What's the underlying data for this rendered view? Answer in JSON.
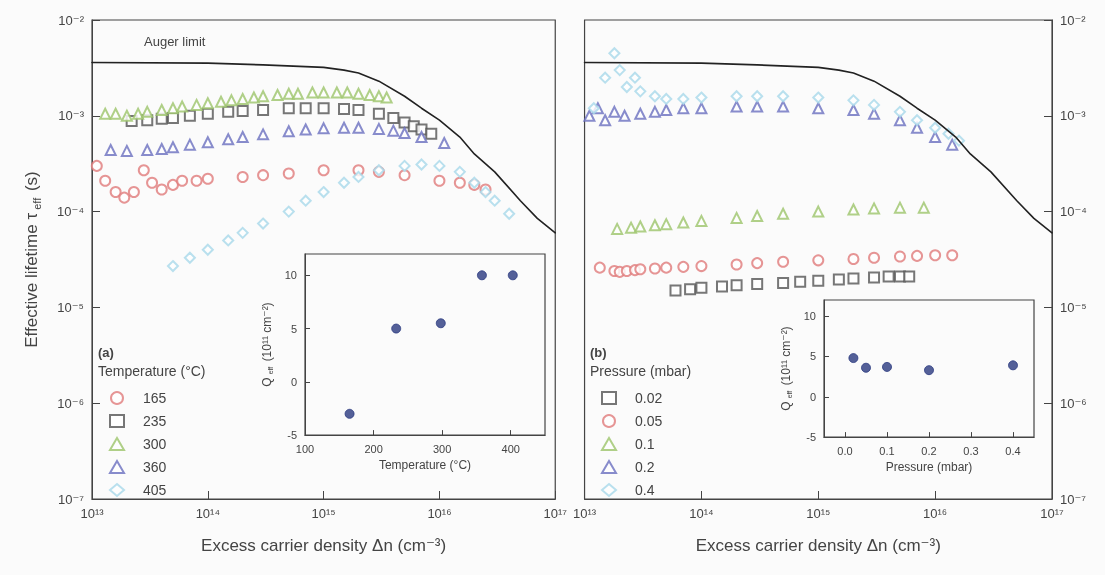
{
  "chart_data": [
    {
      "type": "scatter",
      "xlabel": "Excess carrier density Δn (cm⁻³)",
      "ylabel": "Effective lifetime τ$_{eff}$ (s)",
      "legend_title": "Temperature (°C)",
      "annotations": [
        "(a)"
      ],
      "log": "xy",
      "grid": false,
      "legend": "bottom left",
      "xlim": [
        10000000000000.0,
        1e+17
      ],
      "xticks": [
        {
          "value": 10000000000000.0,
          "label": "10¹³"
        },
        {
          "value": 100000000000000.0,
          "label": "10¹⁴"
        },
        {
          "value": 1000000000000000.0,
          "label": "10¹⁵"
        },
        {
          "value": 1e+16,
          "label": "10¹⁶"
        },
        {
          "value": 1e+17,
          "label": "10¹⁷"
        }
      ],
      "ylim": [
        1e-07,
        0.01
      ],
      "yticks": [
        {
          "value": 1e-07,
          "label": "10⁻⁷"
        },
        {
          "value": 1e-06,
          "label": "10⁻⁶"
        },
        {
          "value": 1e-05,
          "label": "10⁻⁵"
        },
        {
          "value": 0.0001,
          "label": "10⁻⁴"
        },
        {
          "value": 0.001,
          "label": "10⁻³"
        },
        {
          "value": 0.01,
          "label": "10⁻²"
        }
      ],
      "series": [
        {
          "type": "line",
          "name": "Auger limit",
          "color": "#222222",
          "marker": "none",
          "line_style": "solid",
          "x": [
            10000000000000.0,
            100000000000000.0,
            300000000000000.0,
            1000000000000000.0,
            1500000000000000.0,
            2000000000000000.0,
            3000000000000000.0,
            5000000000000000.0,
            7000000000000000.0,
            1e+16,
            1.5e+16,
            2e+16,
            3e+16,
            5e+16,
            7e+16,
            1e+17
          ],
          "values": [
            0.0036,
            0.00355,
            0.0034,
            0.0032,
            0.003,
            0.0028,
            0.0023,
            0.0016,
            0.0012,
            0.0009,
            0.0006,
            0.0004,
            0.00026,
            0.00013,
            8.5e-05,
            6e-05
          ]
        },
        {
          "name": "165",
          "color": "#e07a7a",
          "marker": "circle",
          "x": [
            11000000000000.0,
            13000000000000.0,
            16000000000000.0,
            19000000000000.0,
            23000000000000.0,
            28000000000000.0,
            33000000000000.0,
            40000000000000.0,
            50000000000000.0,
            60000000000000.0,
            80000000000000.0,
            100000000000000.0,
            200000000000000.0,
            300000000000000.0,
            500000000000000.0,
            1000000000000000.0,
            2000000000000000.0,
            3000000000000000.0,
            5000000000000000.0,
            1e+16,
            1.5e+16,
            2e+16,
            2.5e+16
          ],
          "values": [
            0.0003,
            0.00021,
            0.00016,
            0.00014,
            0.00016,
            0.00027,
            0.0002,
            0.00017,
            0.00019,
            0.00021,
            0.00021,
            0.00022,
            0.00023,
            0.00024,
            0.00025,
            0.00027,
            0.00027,
            0.00026,
            0.00024,
            0.00021,
            0.0002,
            0.00019,
            0.00017
          ]
        },
        {
          "name": "235",
          "color": "#555555",
          "marker": "square",
          "x": [
            22000000000000.0,
            30000000000000.0,
            40000000000000.0,
            50000000000000.0,
            70000000000000.0,
            100000000000000.0,
            150000000000000.0,
            200000000000000.0,
            300000000000000.0,
            500000000000000.0,
            700000000000000.0,
            1000000000000000.0,
            1500000000000000.0,
            2000000000000000.0,
            3000000000000000.0,
            4000000000000000.0,
            5000000000000000.0,
            6000000000000000.0,
            7000000000000000.0,
            8500000000000000.0
          ],
          "values": [
            0.00088,
            0.0009,
            0.00093,
            0.00095,
            0.001,
            0.00105,
            0.0011,
            0.00112,
            0.00115,
            0.0012,
            0.0012,
            0.0012,
            0.00118,
            0.00115,
            0.00105,
            0.00095,
            0.00085,
            0.00078,
            0.00072,
            0.00065
          ]
        },
        {
          "name": "300",
          "color": "#9cc46a",
          "marker": "triangle",
          "x": [
            13000000000000.0,
            16000000000000.0,
            20000000000000.0,
            25000000000000.0,
            30000000000000.0,
            40000000000000.0,
            50000000000000.0,
            60000000000000.0,
            80000000000000.0,
            100000000000000.0,
            130000000000000.0,
            160000000000000.0,
            200000000000000.0,
            250000000000000.0,
            300000000000000.0,
            400000000000000.0,
            500000000000000.0,
            600000000000000.0,
            800000000000000.0,
            1000000000000000.0,
            1300000000000000.0,
            1600000000000000.0,
            2000000000000000.0,
            2500000000000000.0,
            3000000000000000.0,
            3500000000000000.0
          ],
          "values": [
            0.00105,
            0.00105,
            0.001,
            0.00105,
            0.0011,
            0.00115,
            0.0012,
            0.00125,
            0.0013,
            0.00135,
            0.0014,
            0.00145,
            0.0015,
            0.00155,
            0.0016,
            0.00165,
            0.0017,
            0.0017,
            0.00175,
            0.00175,
            0.00175,
            0.00175,
            0.0017,
            0.00165,
            0.0016,
            0.00155
          ]
        },
        {
          "name": "360",
          "color": "#6a6fbf",
          "marker": "triangle",
          "x": [
            14500000000000.0,
            20000000000000.0,
            30000000000000.0,
            40000000000000.0,
            50000000000000.0,
            70000000000000.0,
            100000000000000.0,
            150000000000000.0,
            200000000000000.0,
            300000000000000.0,
            500000000000000.0,
            700000000000000.0,
            1000000000000000.0,
            1500000000000000.0,
            2000000000000000.0,
            3000000000000000.0,
            4000000000000000.0,
            5000000000000000.0,
            7000000000000000.0,
            1.1e+16
          ],
          "values": [
            0.00044,
            0.00043,
            0.00044,
            0.00045,
            0.00047,
            0.0005,
            0.00053,
            0.00057,
            0.0006,
            0.00064,
            0.00069,
            0.00072,
            0.00074,
            0.00075,
            0.00075,
            0.00073,
            0.0007,
            0.00066,
            0.0006,
            0.00052
          ]
        },
        {
          "name": "405",
          "color": "#a8d8ea",
          "marker": "diamond",
          "x": [
            50000000000000.0,
            70000000000000.0,
            100000000000000.0,
            150000000000000.0,
            200000000000000.0,
            300000000000000.0,
            500000000000000.0,
            700000000000000.0,
            1000000000000000.0,
            1500000000000000.0,
            2000000000000000.0,
            3000000000000000.0,
            5000000000000000.0,
            7000000000000000.0,
            1e+16,
            1.5e+16,
            2e+16,
            2.5e+16,
            3e+16,
            4e+16
          ],
          "values": [
            2.7e-05,
            3.3e-05,
            4e-05,
            5e-05,
            6e-05,
            7.5e-05,
            0.0001,
            0.00013,
            0.00016,
            0.0002,
            0.00023,
            0.00027,
            0.0003,
            0.00031,
            0.0003,
            0.00026,
            0.0002,
            0.00016,
            0.00013,
            9.5e-05
          ]
        }
      ]
    },
    {
      "type": "scatter",
      "xlabel": "Temperature (°C)",
      "ylabel": "Q$_{eff}$ (10¹¹ cm⁻²)",
      "grid": false,
      "marker": "circle",
      "xlim": [
        100,
        450
      ],
      "xticks": [
        100,
        200,
        300,
        400
      ],
      "ylim": [
        -5,
        12
      ],
      "yticks": [
        -5,
        0,
        5,
        10
      ],
      "series": [
        {
          "color": "#2a3a80",
          "x": [
            165,
            233,
            298,
            358,
            403
          ],
          "values": [
            -3,
            5,
            5.5,
            10,
            10
          ]
        }
      ]
    },
    {
      "type": "scatter",
      "xlabel": "Excess carrier density Δn (cm⁻³)",
      "legend_title": "Pressure (mbar)",
      "annotations": [
        "(b)"
      ],
      "log": "xy",
      "grid": false,
      "legend": "bottom left",
      "xlim": [
        10000000000000.0,
        1e+17
      ],
      "xticks": [
        {
          "value": 10000000000000.0,
          "label": "10¹³"
        },
        {
          "value": 100000000000000.0,
          "label": "10¹⁴"
        },
        {
          "value": 1000000000000000.0,
          "label": "10¹⁵"
        },
        {
          "value": 1e+16,
          "label": "10¹⁶"
        },
        {
          "value": 1e+17,
          "label": "10¹⁷"
        }
      ],
      "ylim": [
        1e-07,
        0.01
      ],
      "yticks": [
        {
          "value": 1e-07,
          "label": "10⁻⁷"
        },
        {
          "value": 1e-06,
          "label": "10⁻⁶"
        },
        {
          "value": 1e-05,
          "label": "10⁻⁵"
        },
        {
          "value": 0.0001,
          "label": "10⁻⁴"
        },
        {
          "value": 0.001,
          "label": "10⁻³"
        },
        {
          "value": 0.01,
          "label": "10⁻²"
        }
      ],
      "series": [
        {
          "type": "line",
          "color": "#222222",
          "marker": "none",
          "line_style": "solid",
          "x": [
            10000000000000.0,
            100000000000000.0,
            300000000000000.0,
            1000000000000000.0,
            1500000000000000.0,
            2000000000000000.0,
            3000000000000000.0,
            5000000000000000.0,
            7000000000000000.0,
            1e+16,
            1.5e+16,
            2e+16,
            3e+16,
            5e+16,
            7e+16,
            1e+17
          ],
          "values": [
            0.0036,
            0.00355,
            0.0034,
            0.0032,
            0.003,
            0.0028,
            0.0023,
            0.0016,
            0.0012,
            0.0009,
            0.0006,
            0.0004,
            0.00026,
            0.00013,
            8.5e-05,
            6e-05
          ]
        },
        {
          "name": "0.02",
          "color": "#555555",
          "marker": "square",
          "x": [
            60000000000000.0,
            80000000000000.0,
            100000000000000.0,
            150000000000000.0,
            200000000000000.0,
            300000000000000.0,
            500000000000000.0,
            700000000000000.0,
            1000000000000000.0,
            1500000000000000.0,
            2000000000000000.0,
            3000000000000000.0,
            4000000000000000.0,
            5000000000000000.0,
            6000000000000000.0
          ],
          "values": [
            1.5e-05,
            1.55e-05,
            1.6e-05,
            1.65e-05,
            1.7e-05,
            1.75e-05,
            1.8e-05,
            1.85e-05,
            1.9e-05,
            1.95e-05,
            2e-05,
            2.05e-05,
            2.1e-05,
            2.1e-05,
            2.1e-05
          ]
        },
        {
          "name": "0.05",
          "color": "#e07a7a",
          "marker": "circle",
          "x": [
            13500000000000.0,
            18000000000000.0,
            20000000000000.0,
            23000000000000.0,
            27000000000000.0,
            30000000000000.0,
            40000000000000.0,
            50000000000000.0,
            70000000000000.0,
            100000000000000.0,
            200000000000000.0,
            300000000000000.0,
            500000000000000.0,
            1000000000000000.0,
            2000000000000000.0,
            3000000000000000.0,
            5000000000000000.0,
            7000000000000000.0,
            1e+16,
            1.4e+16
          ],
          "values": [
            2.6e-05,
            2.4e-05,
            2.35e-05,
            2.4e-05,
            2.45e-05,
            2.5e-05,
            2.55e-05,
            2.6e-05,
            2.65e-05,
            2.7e-05,
            2.8e-05,
            2.9e-05,
            3e-05,
            3.1e-05,
            3.2e-05,
            3.3e-05,
            3.4e-05,
            3.45e-05,
            3.5e-05,
            3.5e-05
          ]
        },
        {
          "name": "0.1",
          "color": "#9cc46a",
          "marker": "triangle",
          "x": [
            19000000000000.0,
            25000000000000.0,
            30000000000000.0,
            40000000000000.0,
            50000000000000.0,
            70000000000000.0,
            100000000000000.0,
            200000000000000.0,
            300000000000000.0,
            500000000000000.0,
            1000000000000000.0,
            2000000000000000.0,
            3000000000000000.0,
            5000000000000000.0,
            8000000000000000.0
          ],
          "values": [
            6.6e-05,
            6.8e-05,
            7e-05,
            7.2e-05,
            7.4e-05,
            7.7e-05,
            8e-05,
            8.6e-05,
            9e-05,
            9.5e-05,
            0.0001,
            0.000105,
            0.000108,
            0.00011,
            0.00011
          ]
        },
        {
          "name": "0.2",
          "color": "#6a6fbf",
          "marker": "triangle",
          "x": [
            11000000000000.0,
            13000000000000.0,
            15000000000000.0,
            18000000000000.0,
            22000000000000.0,
            30000000000000.0,
            40000000000000.0,
            50000000000000.0,
            70000000000000.0,
            100000000000000.0,
            200000000000000.0,
            300000000000000.0,
            500000000000000.0,
            1000000000000000.0,
            2000000000000000.0,
            3000000000000000.0,
            5000000000000000.0,
            7000000000000000.0,
            1e+16,
            1.4e+16
          ],
          "values": [
            0.001,
            0.0012,
            0.0009,
            0.0011,
            0.001,
            0.00105,
            0.0011,
            0.00115,
            0.0012,
            0.0012,
            0.00125,
            0.00125,
            0.00125,
            0.0012,
            0.00115,
            0.00105,
            0.0009,
            0.00075,
            0.0006,
            0.0005
          ]
        },
        {
          "name": "0.4",
          "color": "#a8d8ea",
          "marker": "diamond",
          "x": [
            12000000000000.0,
            15000000000000.0,
            18000000000000.0,
            20000000000000.0,
            23000000000000.0,
            27000000000000.0,
            30000000000000.0,
            40000000000000.0,
            50000000000000.0,
            70000000000000.0,
            100000000000000.0,
            200000000000000.0,
            300000000000000.0,
            500000000000000.0,
            1000000000000000.0,
            2000000000000000.0,
            3000000000000000.0,
            5000000000000000.0,
            7000000000000000.0,
            1e+16,
            1.3e+16,
            1.6e+16
          ],
          "values": [
            0.0012,
            0.0025,
            0.0045,
            0.003,
            0.002,
            0.0025,
            0.0018,
            0.0016,
            0.0015,
            0.0015,
            0.00155,
            0.0016,
            0.0016,
            0.0016,
            0.00155,
            0.00145,
            0.0013,
            0.0011,
            0.0009,
            0.00075,
            0.00065,
            0.00055
          ]
        }
      ]
    },
    {
      "type": "scatter",
      "xlabel": "Pressure (mbar)",
      "ylabel": "Q$_{eff}$ (10¹¹ cm⁻²)",
      "grid": false,
      "marker": "circle",
      "xlim": [
        -0.05,
        0.45
      ],
      "xticks": [
        {
          "value": 0,
          "label": "0.0"
        },
        0.1,
        0.2,
        0.3,
        0.4
      ],
      "ylim": [
        -5,
        12
      ],
      "yticks": [
        -5,
        0,
        5,
        10
      ],
      "series": [
        {
          "color": "#2a3a80",
          "x": [
            0.02,
            0.05,
            0.1,
            0.2,
            0.4
          ],
          "values": [
            4.8,
            3.6,
            3.7,
            3.3,
            3.9
          ]
        }
      ]
    }
  ]
}
